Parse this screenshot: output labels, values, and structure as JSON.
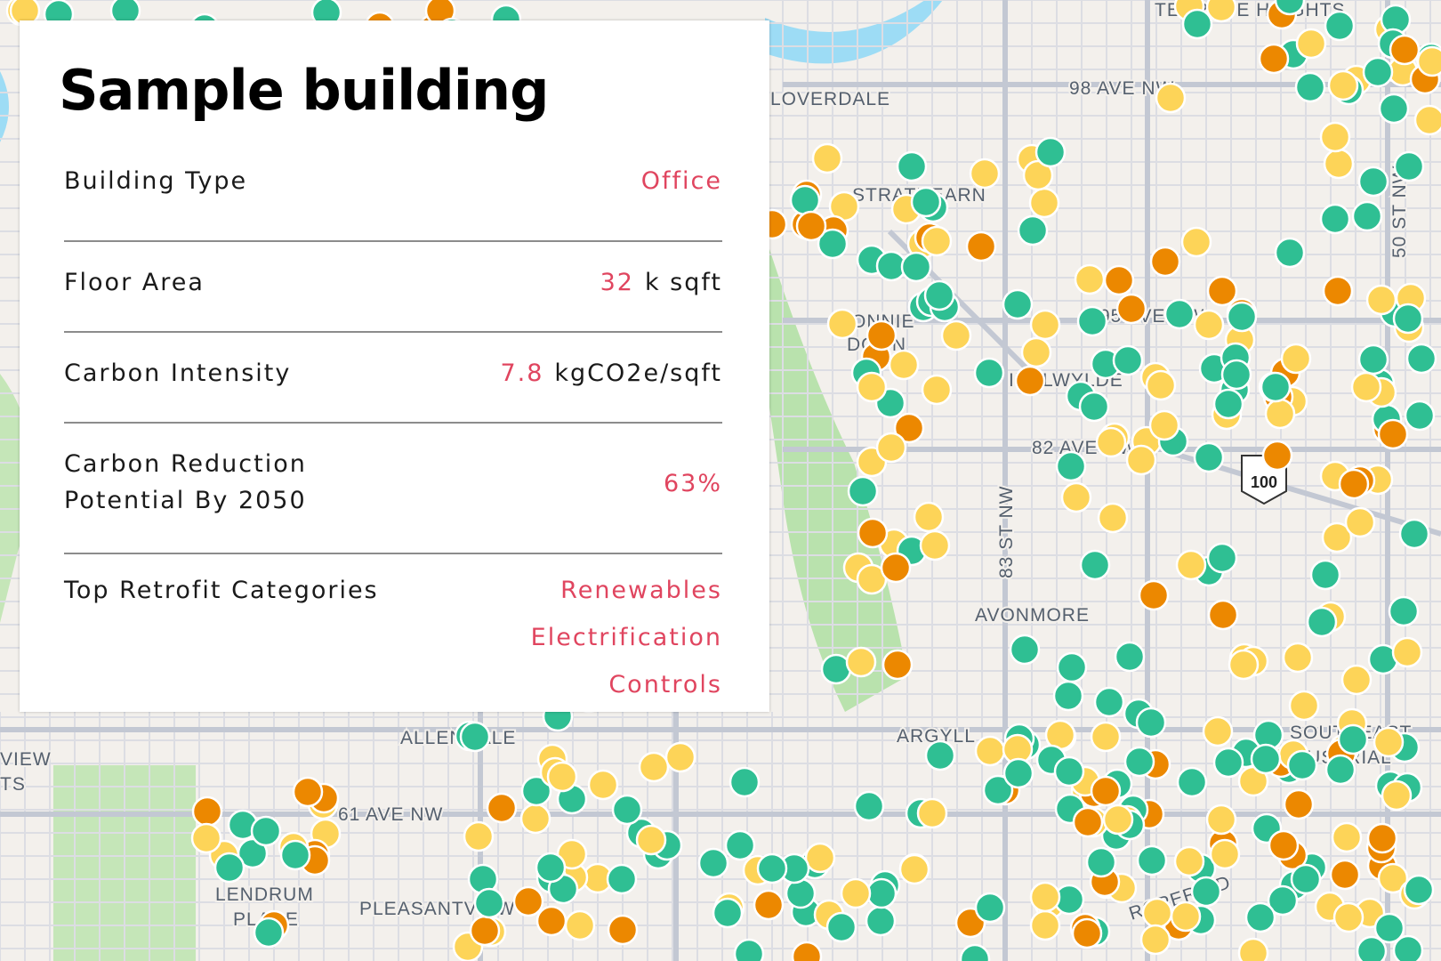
{
  "panel": {
    "title": "Sample building",
    "rows": [
      {
        "label": "Building Type",
        "value": "Office"
      },
      {
        "label": "Floor Area",
        "value": "32",
        "unit": "k sqft"
      },
      {
        "label": "Carbon Intensity",
        "value": "7.8",
        "unit": "kgCO2e/sqft"
      },
      {
        "label_line1": "Carbon Reduction",
        "label_line2": "Potential By 2050",
        "value": "63%"
      },
      {
        "label": "Top Retrofit Categories",
        "values": [
          "Renewables",
          "Electrification",
          "Controls"
        ]
      }
    ],
    "accent_color": "#e0455f"
  },
  "map": {
    "labels": [
      "TERRACE HEIGHTS",
      "98 AVE NW",
      "LOVERDALE",
      "STRATHEARN",
      "BONNIE",
      "DOON",
      "95 AVE NW",
      "IDYLWYLDE",
      "82 AVE NW",
      "83 ST NW",
      "50 ST NW",
      "AVONMORE",
      "ARGYLL",
      "ALLENDALE",
      "61 AVE NW",
      "LENDRUM",
      "PLACE",
      "PLEASANTVIEW",
      "ROPER RD",
      "SOUTHEAST",
      "INDUSTRIAL",
      "VIEW",
      "TS"
    ],
    "highway_shield": "100",
    "marker_colors": {
      "low": "#2fbf93",
      "medium": "#fdd458",
      "high": "#ec8800"
    }
  }
}
